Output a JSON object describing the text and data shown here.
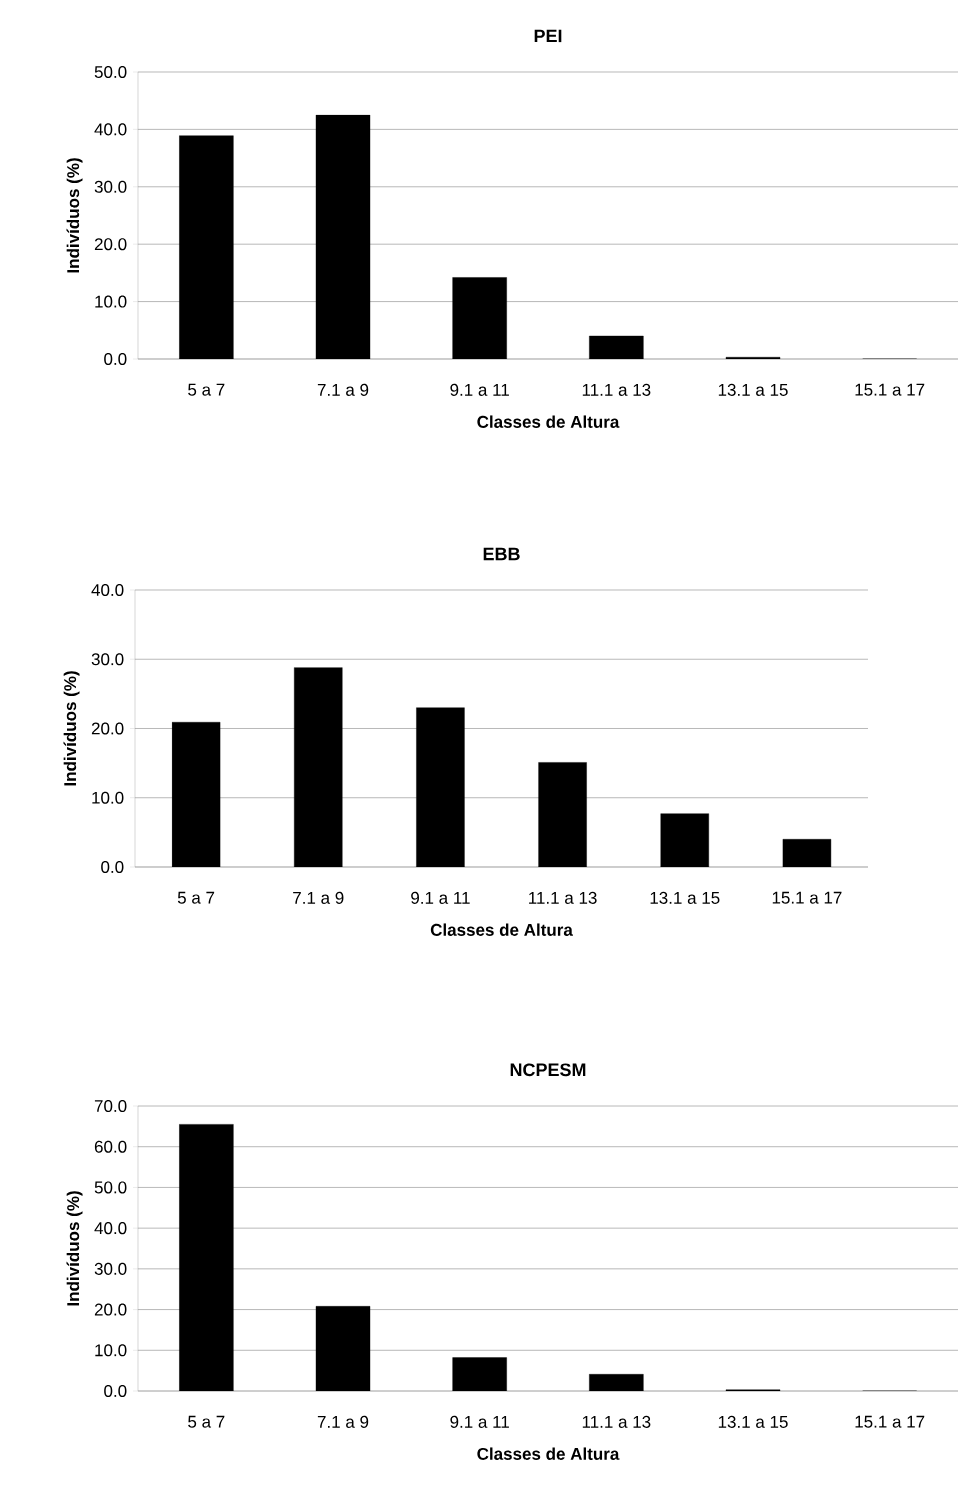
{
  "chart_data": [
    {
      "type": "bar",
      "title": "PEI",
      "xlabel": "Classes de Altura",
      "ylabel": "Indivíduos (%)",
      "categories": [
        "5 a 7",
        "7.1 a 9",
        "9.1 a 11",
        "11.1 a 13",
        "13.1 a 15",
        "15.1 a 17"
      ],
      "values": [
        38.9,
        42.5,
        14.2,
        4.0,
        0.3,
        0
      ],
      "color": "#000000",
      "ylim": [
        0,
        50
      ],
      "yticks": [
        {
          "value": 0,
          "label": "0.0"
        },
        {
          "value": 10,
          "label": "10.0"
        },
        {
          "value": 20,
          "label": "20.0"
        },
        {
          "value": 30,
          "label": "30.0"
        },
        {
          "value": 40,
          "label": "40.0"
        },
        {
          "value": 50,
          "label": "50.0"
        }
      ],
      "grid": "y"
    },
    {
      "type": "bar",
      "title": "EBB",
      "xlabel": "Classes de Altura",
      "ylabel": "Indivíduos (%)",
      "categories": [
        "5 a 7",
        "7.1 a 9",
        "9.1 a 11",
        "11.1 a 13",
        "13.1 a 15",
        "15.1 a 17"
      ],
      "values": [
        20.9,
        28.8,
        23.0,
        15.1,
        7.7,
        4.0
      ],
      "color": "#000000",
      "ylim": [
        0,
        40
      ],
      "yticks": [
        {
          "value": 0,
          "label": "0.0"
        },
        {
          "value": 10,
          "label": "10.0"
        },
        {
          "value": 20,
          "label": "20.0"
        },
        {
          "value": 30,
          "label": "30.0"
        },
        {
          "value": 40,
          "label": "40.0"
        }
      ],
      "grid": "y"
    },
    {
      "type": "bar",
      "title": "NCPESM",
      "xlabel": "Classes de Altura",
      "ylabel": "Indivíduos (%)",
      "categories": [
        "5 a 7",
        "7.1 a 9",
        "9.1 a 11",
        "11.1 a 13",
        "13.1 a 15",
        "15.1 a 17"
      ],
      "values": [
        65.5,
        20.8,
        8.2,
        4.1,
        0.3,
        0
      ],
      "color": "#000000",
      "ylim": [
        0,
        70
      ],
      "yticks": [
        {
          "value": 0,
          "label": "0.0"
        },
        {
          "value": 10,
          "label": "10.0"
        },
        {
          "value": 20,
          "label": "20.0"
        },
        {
          "value": 30,
          "label": "30.0"
        },
        {
          "value": 40,
          "label": "40.0"
        },
        {
          "value": 50,
          "label": "50.0"
        },
        {
          "value": 60,
          "label": "60.0"
        },
        {
          "value": 70,
          "label": "70.0"
        }
      ],
      "grid": "y"
    }
  ]
}
